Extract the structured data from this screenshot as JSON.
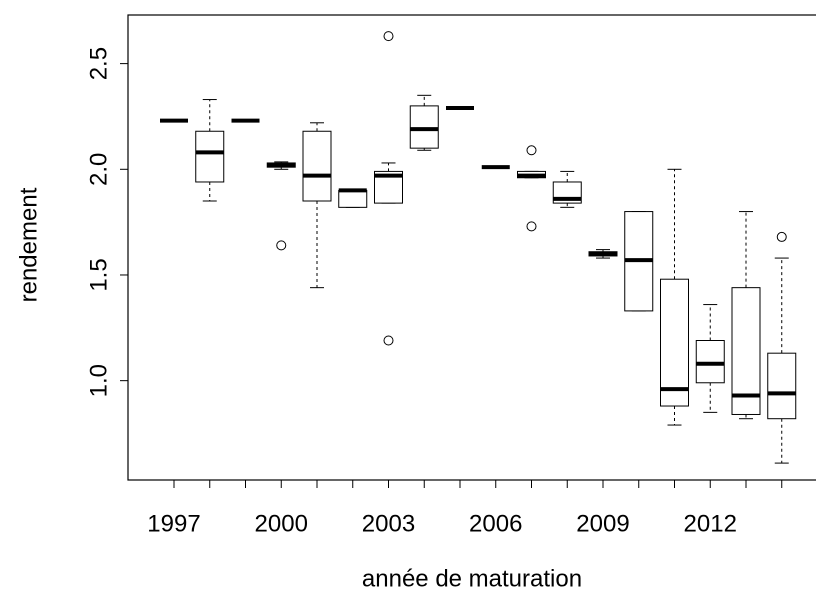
{
  "chart_data": {
    "type": "boxplot",
    "x_label": "année de maturation",
    "y_label": "rendement",
    "categories": [
      "1997",
      null,
      null,
      "2000",
      null,
      null,
      "2003",
      null,
      null,
      "2006",
      null,
      null,
      "2009",
      null,
      null,
      "2012",
      null,
      null
    ],
    "boxes": [
      {
        "min": 2.23,
        "q1": 2.23,
        "median": 2.23,
        "q3": 2.23,
        "max": 2.23,
        "outliers": []
      },
      {
        "min": 1.85,
        "q1": 1.94,
        "median": 2.08,
        "q3": 2.18,
        "max": 2.33,
        "outliers": []
      },
      {
        "min": 2.23,
        "q1": 2.23,
        "median": 2.23,
        "q3": 2.23,
        "max": 2.23,
        "outliers": []
      },
      {
        "min": 2.0,
        "q1": 2.01,
        "median": 2.02,
        "q3": 2.03,
        "max": 2.035,
        "outliers": [
          1.64
        ]
      },
      {
        "min": 1.44,
        "q1": 1.85,
        "median": 1.97,
        "q3": 2.18,
        "max": 2.22,
        "outliers": []
      },
      {
        "min": 1.82,
        "q1": 1.82,
        "median": 1.9,
        "q3": 1.9,
        "max": 1.9,
        "outliers": []
      },
      {
        "min": 1.84,
        "q1": 1.84,
        "median": 1.97,
        "q3": 1.99,
        "max": 2.03,
        "outliers": [
          2.63,
          1.19
        ]
      },
      {
        "min": 2.09,
        "q1": 2.1,
        "median": 2.19,
        "q3": 2.3,
        "max": 2.35,
        "outliers": []
      },
      {
        "min": 2.29,
        "q1": 2.29,
        "median": 2.29,
        "q3": 2.29,
        "max": 2.29,
        "outliers": []
      },
      {
        "min": 2.01,
        "q1": 2.01,
        "median": 2.01,
        "q3": 2.01,
        "max": 2.01,
        "outliers": []
      },
      {
        "min": 1.96,
        "q1": 1.96,
        "median": 1.97,
        "q3": 1.99,
        "max": 1.99,
        "outliers": [
          2.09,
          1.73
        ]
      },
      {
        "min": 1.82,
        "q1": 1.84,
        "median": 1.86,
        "q3": 1.94,
        "max": 1.99,
        "outliers": []
      },
      {
        "min": 1.58,
        "q1": 1.59,
        "median": 1.6,
        "q3": 1.61,
        "max": 1.62,
        "outliers": []
      },
      {
        "min": 1.33,
        "q1": 1.33,
        "median": 1.57,
        "q3": 1.8,
        "max": 1.8,
        "outliers": []
      },
      {
        "min": 0.79,
        "q1": 0.88,
        "median": 0.96,
        "q3": 1.48,
        "max": 2.0,
        "outliers": []
      },
      {
        "min": 0.85,
        "q1": 0.99,
        "median": 1.08,
        "q3": 1.19,
        "max": 1.36,
        "outliers": []
      },
      {
        "min": 0.82,
        "q1": 0.84,
        "median": 0.93,
        "q3": 1.44,
        "max": 1.8,
        "outliers": []
      },
      {
        "min": 0.61,
        "q1": 0.82,
        "median": 0.94,
        "q3": 1.13,
        "max": 1.58,
        "outliers": [
          1.68
        ]
      }
    ],
    "ylim": [
      0.53,
      2.73
    ],
    "yticks": [
      {
        "value": 1,
        "label": "1.0"
      },
      1.5,
      {
        "value": 2,
        "label": "2.0"
      },
      2.5
    ],
    "color": "#000000"
  }
}
